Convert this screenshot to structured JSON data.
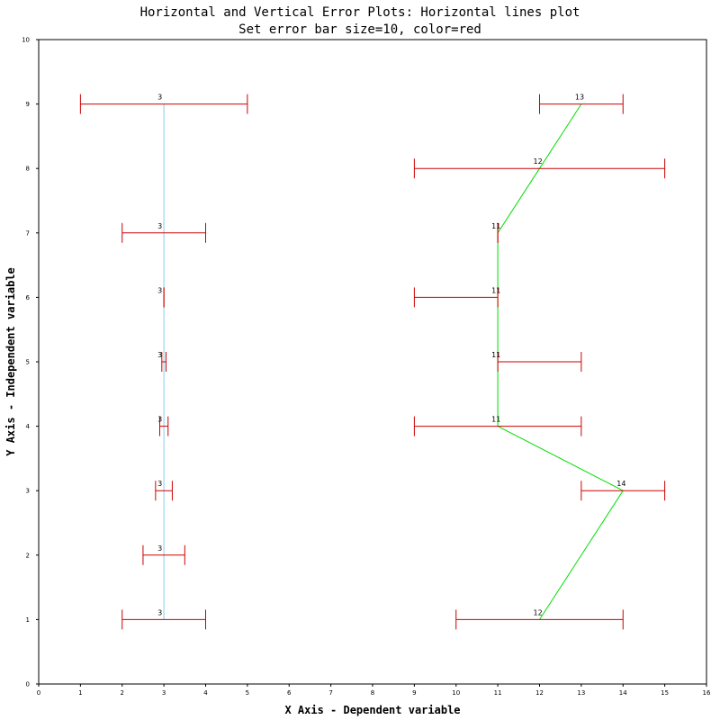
{
  "chart_data": {
    "type": "line",
    "title": "Horizontal and Vertical Error Plots: Horizontal lines plot",
    "subtitle": "Set error bar size=10, color=red",
    "xlabel": "X Axis - Dependent variable",
    "ylabel": "Y Axis - Independent variable",
    "xlim": [
      0,
      16
    ],
    "ylim": [
      0,
      10
    ],
    "x_ticks": [
      "0",
      "1",
      "2",
      "3",
      "4",
      "5",
      "6",
      "7",
      "8",
      "9",
      "10",
      "11",
      "12",
      "13",
      "14",
      "15",
      "16"
    ],
    "y_ticks": [
      "0",
      "1",
      "2",
      "3",
      "4",
      "5",
      "6",
      "7",
      "8",
      "9",
      "10"
    ],
    "grid": false,
    "error_bar_color": "#cc0000",
    "series": [
      {
        "color": "#87ceeb",
        "points": [
          {
            "y": 1,
            "x": 3,
            "xmin": 2,
            "xmax": 4,
            "label": "3"
          },
          {
            "y": 2,
            "x": 3,
            "xmin": 2.5,
            "xmax": 3.5,
            "label": "3"
          },
          {
            "y": 3,
            "x": 3,
            "xmin": 2.8,
            "xmax": 3.2,
            "label": "3"
          },
          {
            "y": 4,
            "x": 3,
            "xmin": 2.9,
            "xmax": 3.1,
            "label": "3"
          },
          {
            "y": 5,
            "x": 3,
            "xmin": 2.95,
            "xmax": 3.05,
            "label": "3"
          },
          {
            "y": 6,
            "x": 3,
            "xmin": 3,
            "xmax": 3,
            "label": "3"
          },
          {
            "y": 7,
            "x": 3,
            "xmin": 2,
            "xmax": 4,
            "label": "3"
          },
          {
            "y": 9,
            "x": 3,
            "xmin": 1,
            "xmax": 5,
            "label": "3"
          }
        ]
      },
      {
        "color": "#00dd00",
        "points": [
          {
            "y": 1,
            "x": 12,
            "xmin": 10,
            "xmax": 14,
            "label": "12"
          },
          {
            "y": 3,
            "x": 14,
            "xmin": 13,
            "xmax": 15,
            "label": "14"
          },
          {
            "y": 4,
            "x": 11,
            "xmin": 9,
            "xmax": 13,
            "label": "11"
          },
          {
            "y": 5,
            "x": 11,
            "xmin": 11,
            "xmax": 13,
            "label": "11"
          },
          {
            "y": 6,
            "x": 11,
            "xmin": 9,
            "xmax": 11,
            "label": "11"
          },
          {
            "y": 7,
            "x": 11,
            "xmin": 11,
            "xmax": 11,
            "label": "11"
          },
          {
            "y": 8,
            "x": 12,
            "xmin": 9,
            "xmax": 15,
            "label": "12"
          },
          {
            "y": 9,
            "x": 13,
            "xmin": 12,
            "xmax": 14,
            "label": "13"
          }
        ]
      }
    ]
  }
}
